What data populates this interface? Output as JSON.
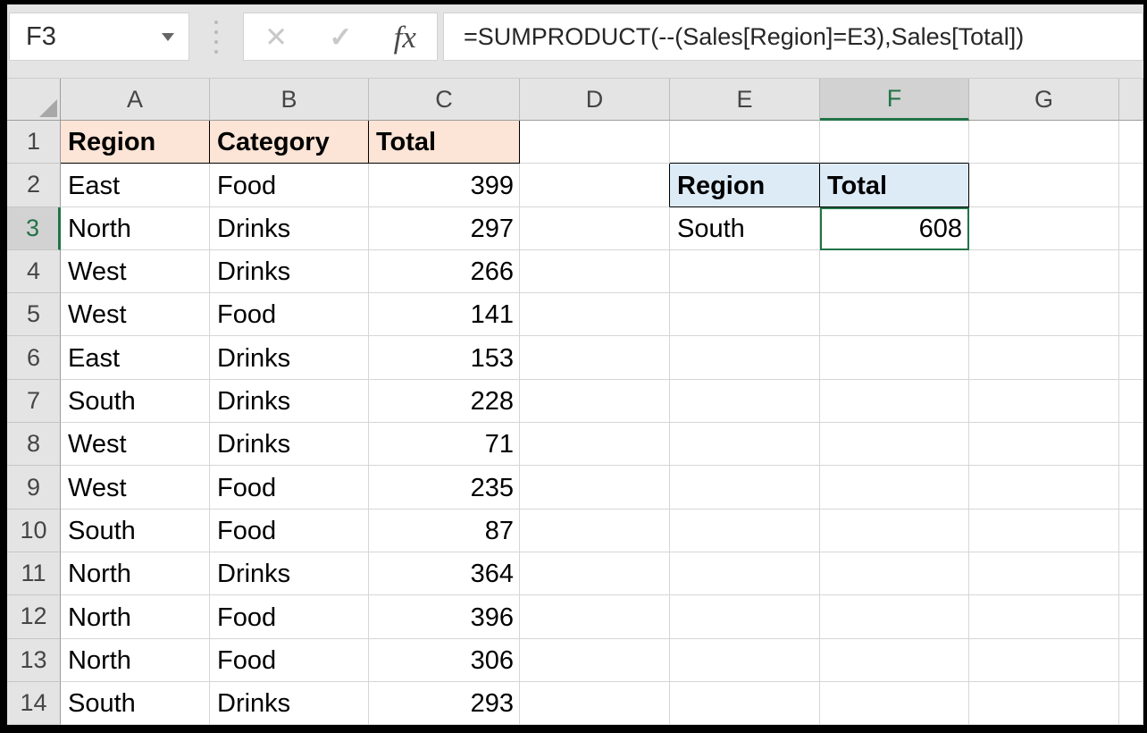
{
  "name_box": {
    "value": "F3"
  },
  "formula_bar": {
    "cancel_icon": "✕",
    "enter_icon": "✓",
    "fx_icon": "fx",
    "formula": "=SUMPRODUCT(--(Sales[Region]=E3),Sales[Total])"
  },
  "colors": {
    "accent_green": "#217346",
    "sales_header_fill": "#FCE4D6",
    "summary_header_fill": "#DDEBF7",
    "selected_header_bg": "#D2D2D2",
    "table_marker_blue": "#4472C4"
  },
  "grid": {
    "column_headers": [
      "A",
      "B",
      "C",
      "D",
      "E",
      "F",
      "G"
    ],
    "row_numbers": [
      "1",
      "2",
      "3",
      "4",
      "5",
      "6",
      "7",
      "8",
      "9",
      "10",
      "11",
      "12",
      "13",
      "14"
    ],
    "active_column": "F",
    "active_row": 3,
    "sales_table": {
      "headers": [
        "Region",
        "Category",
        "Total"
      ],
      "rows": [
        [
          "East",
          "Food",
          "399"
        ],
        [
          "North",
          "Drinks",
          "297"
        ],
        [
          "West",
          "Drinks",
          "266"
        ],
        [
          "West",
          "Food",
          "141"
        ],
        [
          "East",
          "Drinks",
          "153"
        ],
        [
          "South",
          "Drinks",
          "228"
        ],
        [
          "West",
          "Drinks",
          "71"
        ],
        [
          "West",
          "Food",
          "235"
        ],
        [
          "South",
          "Food",
          "87"
        ],
        [
          "North",
          "Drinks",
          "364"
        ],
        [
          "North",
          "Food",
          "396"
        ],
        [
          "North",
          "Food",
          "306"
        ],
        [
          "South",
          "Drinks",
          "293"
        ]
      ]
    },
    "summary_table": {
      "headers": [
        "Region",
        "Total"
      ],
      "region_value": "South",
      "total_value": "608"
    }
  }
}
